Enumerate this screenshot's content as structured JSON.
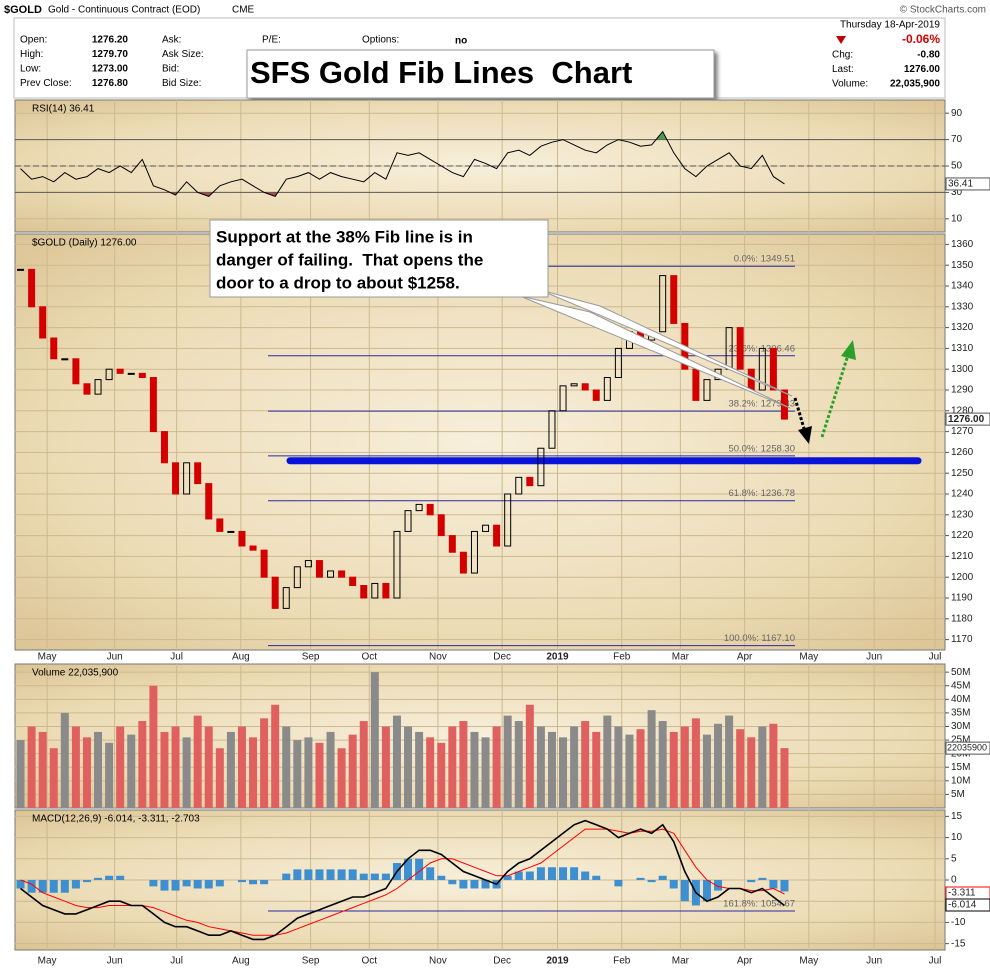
{
  "header": {
    "symbol": "$GOLD",
    "name": "Gold - Continuous Contract (EOD)",
    "exchange": "CME",
    "source": "© StockCharts.com",
    "date": "Thursday 18-Apr-2019",
    "change_percent": "-0.06%",
    "fields": [
      {
        "label": "Open:",
        "value": "1276.20"
      },
      {
        "label": "High:",
        "value": "1279.70"
      },
      {
        "label": "Low:",
        "value": "1273.00"
      },
      {
        "label": "Prev Close:",
        "value": "1276.80"
      }
    ],
    "quote_labels": [
      "Ask:",
      "Ask Size:",
      "Bid:",
      "Bid Size:"
    ],
    "pe_label": "P/E:",
    "options_label": "Options:",
    "options_value": "no",
    "summary": [
      {
        "label": "Chg:",
        "value": "-0.80"
      },
      {
        "label": "Last:",
        "value": "1276.00"
      },
      {
        "label": "Volume:",
        "value": "22,035,900"
      }
    ]
  },
  "title_box": "SFS Gold Fib Lines  Chart",
  "annotation": [
    "Support at the 38% Fib line is in",
    "danger of failing.  That opens the",
    "door to a drop to about $1258."
  ],
  "chart_data": [
    {
      "type": "rsi",
      "title": "RSI(14) 36.41",
      "color": "#000000",
      "overbought": 70,
      "oversold": 30,
      "midline": 50,
      "values": [
        48,
        40,
        42,
        38,
        45,
        40,
        42,
        48,
        45,
        50,
        45,
        55,
        35,
        32,
        28,
        38,
        30,
        27,
        35,
        38,
        40,
        35,
        30,
        27,
        40,
        42,
        45,
        40,
        45,
        42,
        40,
        38,
        45,
        40,
        60,
        58,
        60,
        55,
        50,
        45,
        42,
        55,
        52,
        48,
        60,
        62,
        58,
        65,
        68,
        70,
        66,
        62,
        60,
        66,
        70,
        68,
        65,
        66,
        76,
        60,
        48,
        42,
        50,
        55,
        60,
        50,
        48,
        58,
        42,
        36.41
      ],
      "ylim": [
        0,
        100
      ],
      "yticks": [
        10,
        30,
        50,
        70,
        90
      ]
    },
    {
      "type": "candlestick",
      "title": "$GOLD (Daily) 1276.00",
      "up_color": "#000000",
      "down_color": "#d40000",
      "values": [
        1348,
        1330,
        1315,
        1305,
        1305,
        1293,
        1288,
        1295,
        1300,
        1298,
        1298,
        1296,
        1270,
        1255,
        1240,
        1255,
        1245,
        1228,
        1222,
        1222,
        1215,
        1213,
        1200,
        1185,
        1195,
        1205,
        1208,
        1200,
        1203,
        1200,
        1196,
        1190,
        1197,
        1190,
        1222,
        1232,
        1235,
        1230,
        1220,
        1212,
        1202,
        1222,
        1225,
        1215,
        1240,
        1248,
        1244,
        1262,
        1280,
        1292,
        1293,
        1290,
        1285,
        1296,
        1310,
        1318,
        1314,
        1318,
        1345,
        1322,
        1300,
        1285,
        1295,
        1300,
        1320,
        1300,
        1290,
        1310,
        1290,
        1276
      ],
      "ylim": [
        1165,
        1365
      ],
      "yticks": [
        1170,
        1180,
        1190,
        1200,
        1210,
        1220,
        1230,
        1240,
        1250,
        1260,
        1270,
        1280,
        1290,
        1300,
        1310,
        1320,
        1330,
        1340,
        1350,
        1360
      ],
      "xlim": [
        -0.5,
        83.5
      ],
      "xticks": [
        {
          "value": 2.4,
          "label": "May"
        },
        {
          "value": 8.5,
          "label": "Jun"
        },
        {
          "value": 14.1,
          "label": "Jul"
        },
        {
          "value": 19.9,
          "label": "Aug"
        },
        {
          "value": 26.2,
          "label": "Sep"
        },
        {
          "value": 31.5,
          "label": "Oct"
        },
        {
          "value": 37.7,
          "label": "Nov"
        },
        {
          "value": 43.5,
          "label": "Dec"
        },
        {
          "value": 48.5,
          "label": "2019"
        },
        {
          "value": 54.3,
          "label": "Feb"
        },
        {
          "value": 59.6,
          "label": "Mar"
        },
        {
          "value": 65.4,
          "label": "Apr"
        },
        {
          "value": 71.2,
          "label": "May"
        },
        {
          "value": 77.1,
          "label": "Jun"
        },
        {
          "value": 82.6,
          "label": "Jul"
        }
      ],
      "grid": true,
      "fib_levels": [
        {
          "label": "0.0%: 1349.51",
          "value": 1349.51
        },
        {
          "label": "23.6%: 1306.46",
          "value": 1306.46
        },
        {
          "label": "38.2%: 1279.83",
          "value": 1279.83
        },
        {
          "label": "50.0%: 1258.30",
          "value": 1258.3
        },
        {
          "label": "61.8%: 1236.78",
          "value": 1236.78
        },
        {
          "label": "100.0%: 1167.10",
          "value": 1167.1
        }
      ],
      "support_level": 1256,
      "support_color": "#0a14d8"
    },
    {
      "type": "volume",
      "title": "Volume 22,035,900",
      "up_color": "#8a8a8a",
      "down_color": "#e06060",
      "values": [
        25000000,
        30000000,
        28000000,
        22000000,
        35000000,
        30000000,
        26000000,
        28000000,
        24000000,
        30000000,
        27000000,
        32000000,
        45000000,
        28000000,
        30000000,
        26000000,
        34000000,
        30000000,
        22000000,
        28000000,
        30000000,
        26000000,
        33000000,
        38000000,
        30000000,
        25000000,
        26000000,
        24000000,
        28000000,
        22000000,
        27000000,
        32000000,
        50000000,
        30000000,
        34000000,
        30000000,
        28000000,
        26000000,
        24000000,
        30000000,
        32000000,
        28000000,
        26000000,
        30000000,
        34000000,
        32000000,
        38000000,
        30000000,
        28000000,
        26000000,
        30000000,
        32000000,
        28000000,
        34000000,
        30000000,
        27000000,
        29000000,
        36000000,
        32000000,
        28000000,
        30000000,
        33000000,
        27000000,
        31000000,
        34000000,
        29000000,
        26000000,
        30000000,
        31000000,
        22035900
      ],
      "ylim": [
        0,
        53000000
      ],
      "yticks": [
        {
          "value": 5000000,
          "label": "5M"
        },
        {
          "value": 10000000,
          "label": "10M"
        },
        {
          "value": 15000000,
          "label": "15M"
        },
        {
          "value": 20000000,
          "label": "20M"
        },
        {
          "value": 25000000,
          "label": "25M"
        },
        {
          "value": 30000000,
          "label": "30M"
        },
        {
          "value": 35000000,
          "label": "35M"
        },
        {
          "value": 40000000,
          "label": "40M"
        },
        {
          "value": 45000000,
          "label": "45M"
        },
        {
          "value": 50000000,
          "label": "50M"
        }
      ]
    },
    {
      "type": "macd",
      "title": "MACD(12,26,9) -6.014, -3.311, -2.703",
      "fib_label": "161.8%: 1054.67",
      "series": [
        {
          "color": "#000000",
          "values": [
            -2,
            -4,
            -6,
            -7,
            -8,
            -8,
            -7,
            -6,
            -5,
            -5,
            -6,
            -6,
            -8,
            -10,
            -11,
            -11,
            -12,
            -13,
            -13,
            -12,
            -13,
            -14,
            -14,
            -13,
            -11,
            -9,
            -8,
            -7,
            -6,
            -5,
            -4,
            -4,
            -3,
            -2,
            2,
            5,
            7,
            7,
            6,
            4,
            2,
            1,
            0,
            -1,
            2,
            4,
            5,
            7,
            9,
            11,
            13,
            14,
            13,
            12,
            10,
            11,
            12,
            11,
            13,
            9,
            2,
            -3,
            -5,
            -4,
            -2,
            -2,
            -3,
            -2,
            -4,
            -6.014
          ]
        },
        {
          "color": "#ff0000",
          "values": [
            0,
            -1,
            -3,
            -4,
            -5,
            -6,
            -6.5,
            -6.5,
            -6,
            -6,
            -6,
            -6,
            -6.5,
            -7.5,
            -8.5,
            -9.5,
            -10,
            -11,
            -11.5,
            -12,
            -12.5,
            -13,
            -13,
            -13,
            -12.5,
            -11.5,
            -10.5,
            -9.5,
            -8.5,
            -7.5,
            -6.5,
            -5.5,
            -4.5,
            -3.5,
            -2,
            0,
            2,
            4,
            5,
            5,
            4,
            3,
            2,
            1,
            1,
            2,
            3,
            4,
            6,
            8,
            10,
            12,
            12,
            12,
            11.5,
            11,
            11.5,
            11.5,
            12,
            11,
            7,
            3,
            0,
            -1.5,
            -2,
            -2,
            -2.5,
            -2.5,
            -2,
            -3.311
          ]
        },
        {
          "color": "#3d8fd0",
          "values": [
            -2,
            -3,
            -3,
            -3,
            -3,
            -2,
            -0.5,
            0.5,
            1,
            1,
            0,
            0,
            -1.5,
            -2.5,
            -2.5,
            -1.5,
            -2,
            -2,
            -1.5,
            0,
            -0.5,
            -1,
            -1,
            0,
            1.5,
            2.5,
            2.5,
            2.5,
            2.5,
            2.5,
            2.5,
            1.5,
            1.5,
            1.5,
            4,
            5,
            5,
            3,
            1,
            -1,
            -2,
            -2,
            -2,
            -2,
            1,
            2,
            2,
            3,
            3,
            3,
            3,
            2,
            1,
            0,
            -1.5,
            0,
            0.5,
            -0.5,
            1,
            -2,
            -5,
            -6,
            -5,
            -2.5,
            0,
            0,
            -0.5,
            0.5,
            -2,
            -2.703
          ]
        }
      ],
      "ylim": [
        -16.5,
        16.5
      ],
      "yticks": [
        -15,
        -10,
        -5,
        0,
        5,
        10,
        15
      ]
    }
  ]
}
